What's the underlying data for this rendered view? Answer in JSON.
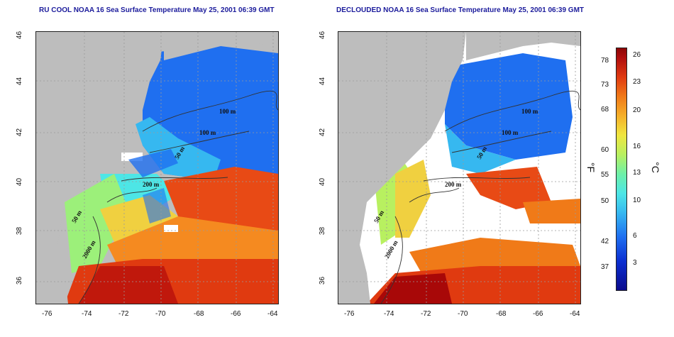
{
  "panels": [
    {
      "title": "RU COOL NOAA 16 Sea Surface Temperature May 25, 2001 06:39 GMT",
      "contour_labels": [
        "100 m",
        "100 m",
        "50 m",
        "200 m",
        "50 m",
        "2000 m"
      ]
    },
    {
      "title": "DECLOUDED NOAA 16 Sea Surface Temperature May 25, 2001 06:39 GMT",
      "contour_labels": [
        "100 m",
        "100 m",
        "50 m",
        "200 m",
        "50 m",
        "2000 m"
      ]
    }
  ],
  "axes": {
    "x_ticks": [
      "-76",
      "-74",
      "-72",
      "-70",
      "-68",
      "-66",
      "-64"
    ],
    "y_ticks": [
      "46",
      "44",
      "42",
      "40",
      "38",
      "36"
    ]
  },
  "colorbar": {
    "fahrenheit_label": "°F",
    "celsius_label": "°C",
    "fahrenheit_ticks": [
      "78",
      "73",
      "68",
      "60",
      "55",
      "50",
      "42",
      "37"
    ],
    "celsius_ticks": [
      "26",
      "23",
      "20",
      "16",
      "13",
      "10",
      "6",
      "3"
    ],
    "colors": {
      "land": "#bdbdbd",
      "cloud": "#ffffff",
      "cold": "#0b2fd1",
      "mid": "#4de6e6",
      "warm": "#f5b02a",
      "hot": "#e03a10"
    }
  }
}
